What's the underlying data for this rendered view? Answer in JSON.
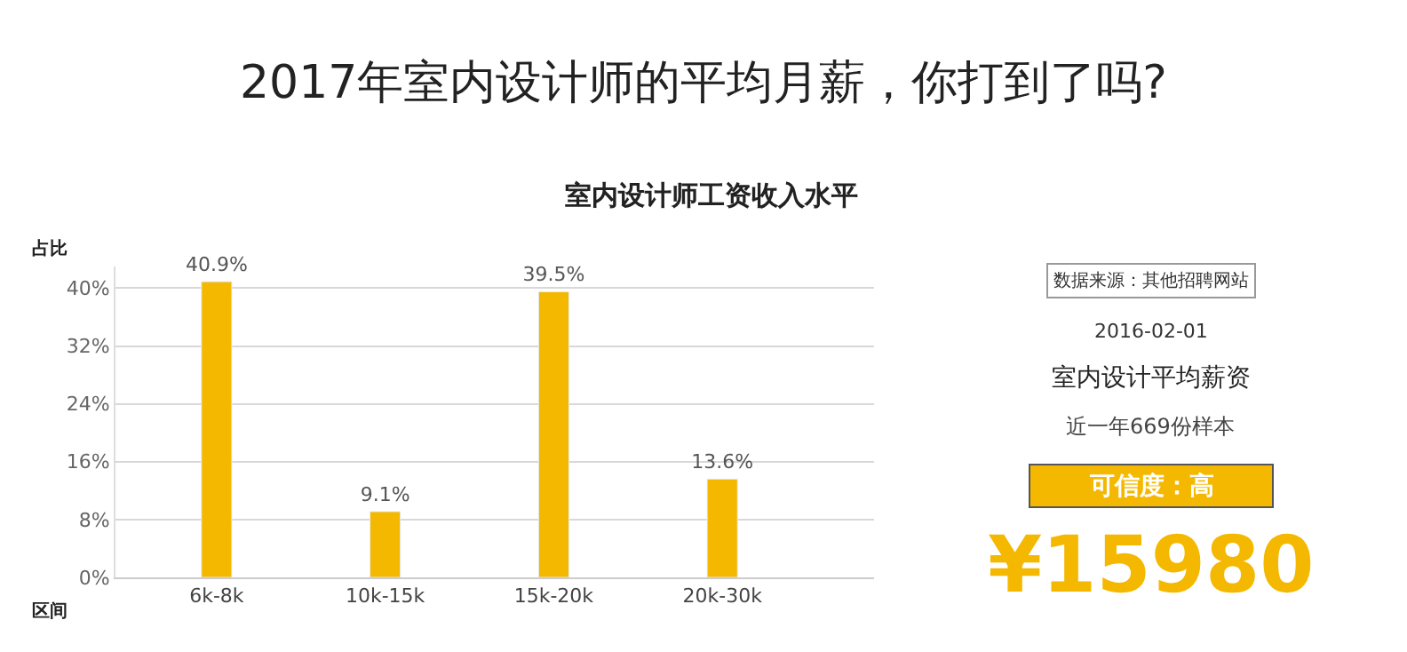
{
  "chart_data": {
    "type": "bar",
    "title": "2017年室内设计师的平均月薪，你打到了吗?",
    "subtitle": "室内设计师工资收入水平",
    "xlabel": "区间",
    "ylabel": "占比",
    "categories": [
      "6k-8k",
      "10k-15k",
      "15k-20k",
      "20k-30k"
    ],
    "values": [
      40.9,
      9.1,
      39.5,
      13.6
    ],
    "color": "#f5b800",
    "value_labels": [
      "40.9%",
      "9.1%",
      "39.5%",
      "13.6%"
    ],
    "ylim": [
      0,
      43
    ],
    "yticks": [
      {
        "value": 0,
        "label": "0%"
      },
      {
        "value": 8,
        "label": "8%"
      },
      {
        "value": 16,
        "label": "16%"
      },
      {
        "value": 24,
        "label": "24%"
      },
      {
        "value": 32,
        "label": "32%"
      },
      {
        "value": 40,
        "label": "40%"
      }
    ],
    "grid": "y",
    "legend": false,
    "annotations": [
      "数据来源：其他招聘网站",
      "2016-02-01",
      "室内设计平均薪资",
      "近一年669份样本",
      "可信度：高",
      "¥15980"
    ]
  }
}
